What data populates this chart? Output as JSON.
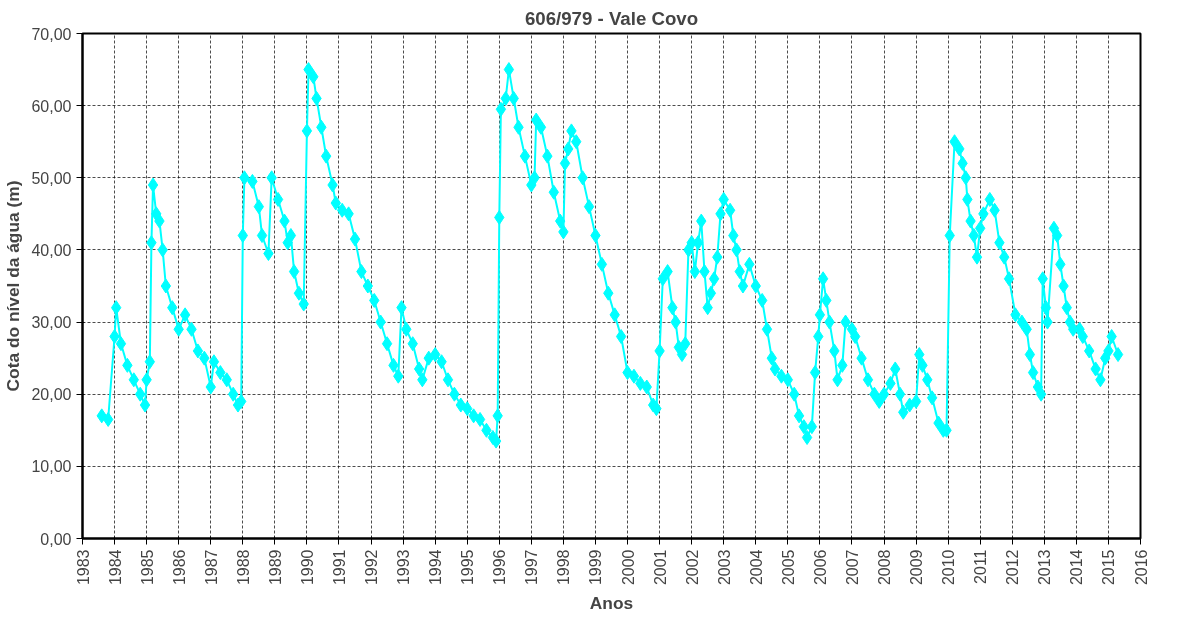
{
  "chart_data": {
    "type": "line",
    "title": "606/979 - Vale Covo",
    "xlabel": "Anos",
    "ylabel": "Cota do nível da água (m)",
    "xlim": [
      1983,
      2016
    ],
    "xticks": [
      1983,
      1984,
      1985,
      1986,
      1987,
      1988,
      1989,
      1990,
      1991,
      1992,
      1993,
      1994,
      1995,
      1996,
      1997,
      1998,
      1999,
      2000,
      2001,
      2002,
      2003,
      2004,
      2005,
      2006,
      2007,
      2008,
      2009,
      2010,
      2011,
      2012,
      2013,
      2014,
      2015,
      2016
    ],
    "ylim": [
      0,
      70
    ],
    "yticks": [
      {
        "value": 0,
        "label": "0,00"
      },
      {
        "value": 10,
        "label": "10,00"
      },
      {
        "value": 20,
        "label": "20,00"
      },
      {
        "value": 30,
        "label": "30,00"
      },
      {
        "value": 40,
        "label": "40,00"
      },
      {
        "value": 50,
        "label": "50,00"
      },
      {
        "value": 60,
        "label": "60,00"
      },
      {
        "value": 70,
        "label": "70,00"
      }
    ],
    "grid": true,
    "marker": "diamond",
    "line_style": "solid",
    "series": [
      {
        "color": "#00ffff",
        "x": [
          1983.6,
          1983.8,
          1984.0,
          1984.05,
          1984.2,
          1984.4,
          1984.6,
          1984.8,
          1984.95,
          1985.0,
          1985.1,
          1985.15,
          1985.2,
          1985.3,
          1985.4,
          1985.5,
          1985.6,
          1985.8,
          1986.0,
          1986.2,
          1986.4,
          1986.6,
          1986.8,
          1987.0,
          1987.1,
          1987.3,
          1987.5,
          1987.7,
          1987.85,
          1987.95,
          1988.0,
          1988.05,
          1988.3,
          1988.5,
          1988.6,
          1988.8,
          1988.9,
          1989.1,
          1989.3,
          1989.4,
          1989.5,
          1989.6,
          1989.75,
          1989.9,
          1990.0,
          1990.05,
          1990.2,
          1990.3,
          1990.45,
          1990.6,
          1990.8,
          1990.9,
          1991.1,
          1991.3,
          1991.5,
          1991.7,
          1991.9,
          1992.1,
          1992.3,
          1992.5,
          1992.7,
          1992.85,
          1992.95,
          1993.1,
          1993.3,
          1993.5,
          1993.6,
          1993.8,
          1994.0,
          1994.2,
          1994.4,
          1994.6,
          1994.8,
          1995.0,
          1995.2,
          1995.4,
          1995.6,
          1995.8,
          1995.9,
          1995.95,
          1996.0,
          1996.05,
          1996.2,
          1996.3,
          1996.45,
          1996.6,
          1996.8,
          1997.0,
          1997.1,
          1997.15,
          1997.3,
          1997.5,
          1997.7,
          1997.9,
          1998.0,
          1998.05,
          1998.15,
          1998.25,
          1998.4,
          1998.6,
          1998.8,
          1999.0,
          1999.2,
          1999.4,
          1999.6,
          1999.8,
          2000.0,
          2000.2,
          2000.4,
          2000.6,
          2000.8,
          2000.9,
          2001.0,
          2001.1,
          2001.25,
          2001.4,
          2001.5,
          2001.6,
          2001.7,
          2001.8,
          2001.9,
          2002.0,
          2002.1,
          2002.2,
          2002.3,
          2002.4,
          2002.5,
          2002.6,
          2002.7,
          2002.8,
          2002.9,
          2003.0,
          2003.2,
          2003.3,
          2003.4,
          2003.5,
          2003.6,
          2003.8,
          2004.0,
          2004.2,
          2004.35,
          2004.5,
          2004.6,
          2004.8,
          2005.0,
          2005.2,
          2005.35,
          2005.5,
          2005.6,
          2005.75,
          2005.85,
          2005.95,
          2006.0,
          2006.1,
          2006.2,
          2006.3,
          2006.45,
          2006.55,
          2006.7,
          2006.8,
          2007.0,
          2007.1,
          2007.3,
          2007.5,
          2007.7,
          2007.85,
          2008.0,
          2008.2,
          2008.35,
          2008.5,
          2008.6,
          2008.8,
          2009.0,
          2009.1,
          2009.2,
          2009.35,
          2009.5,
          2009.7,
          2009.85,
          2009.95,
          2010.05,
          2010.2,
          2010.35,
          2010.45,
          2010.55,
          2010.6,
          2010.7,
          2010.8,
          2010.9,
          2011.0,
          2011.1,
          2011.3,
          2011.45,
          2011.6,
          2011.75,
          2011.9,
          2012.1,
          2012.3,
          2012.45,
          2012.55,
          2012.65,
          2012.8,
          2012.9,
          2012.95,
          2013.05,
          2013.1,
          2013.3,
          2013.4,
          2013.5,
          2013.6,
          2013.7,
          2013.8,
          2013.9,
          2014.1,
          2014.2,
          2014.4,
          2014.6,
          2014.75,
          2014.9,
          2015.0,
          2015.1,
          2015.3
        ],
        "values": [
          17,
          16.5,
          28,
          32,
          27,
          24,
          22,
          20,
          18.5,
          22,
          24.5,
          41,
          49,
          45,
          44,
          40,
          35,
          32,
          29,
          31,
          29,
          26,
          25,
          21,
          24.5,
          23,
          22,
          20,
          18.5,
          19,
          42,
          50,
          49.5,
          46,
          42,
          39.5,
          50,
          47,
          44,
          41,
          42,
          37,
          34,
          32.5,
          56.5,
          65,
          64,
          61,
          57,
          53,
          49,
          46.5,
          45.5,
          45,
          41.5,
          37,
          35,
          33,
          30,
          27,
          24,
          22.5,
          32,
          29,
          27,
          23.5,
          22,
          25,
          25.5,
          24.5,
          22,
          20,
          18.5,
          18,
          17,
          16.5,
          15,
          14,
          13.5,
          17,
          44.5,
          59.5,
          61,
          65,
          61,
          57,
          53,
          49,
          50,
          58,
          57,
          53,
          48,
          44,
          42.5,
          52,
          54,
          56.5,
          55,
          50,
          46,
          42,
          38,
          34,
          31,
          28,
          23,
          22.5,
          21.5,
          21,
          18.5,
          18,
          26,
          36,
          37,
          32,
          30,
          26.5,
          25.5,
          27,
          40,
          41,
          37,
          41,
          44,
          37,
          32,
          34,
          36,
          39,
          45,
          47,
          45.5,
          42,
          40,
          37,
          35,
          38,
          35,
          33,
          29,
          25,
          23.5,
          22.5,
          22,
          20,
          17,
          15.5,
          14,
          15.5,
          23,
          28,
          31,
          36,
          33,
          30,
          26,
          22,
          24,
          30,
          29,
          28,
          25,
          22,
          20,
          19,
          20,
          21.5,
          23.5,
          20,
          17.5,
          18.5,
          19,
          25.5,
          24,
          22,
          19.5,
          16,
          15,
          15,
          42,
          55,
          54,
          52,
          50,
          47,
          44,
          42,
          39,
          43,
          45,
          47,
          45.5,
          41,
          39,
          36,
          31,
          30,
          29,
          25.5,
          23,
          21,
          20,
          36,
          32,
          30,
          43,
          42,
          38,
          35,
          32,
          30,
          29,
          29,
          28,
          26,
          23.5,
          22,
          25,
          26,
          28,
          25.5
        ]
      }
    ]
  }
}
